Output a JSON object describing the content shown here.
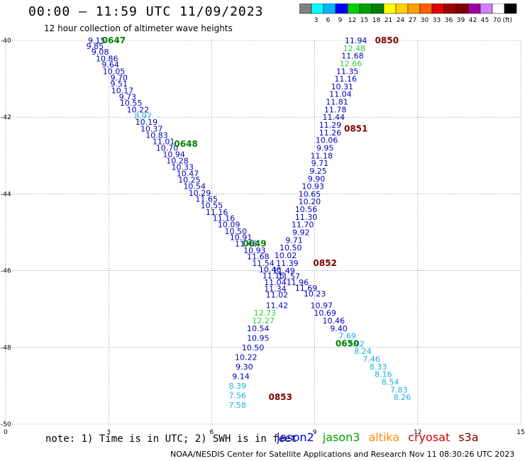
{
  "title": "00:00 – 11:59 UTC 11/09/2023",
  "subtitle": "12 hour collection of altimeter wave heights",
  "note": "note:  1) Time is in UTC; 2) SWH is in feet",
  "credit": "NOAA/NESDIS Center for Satellite Applications and Research   Nov 11 08:30:26 UTC 2023",
  "satellites": [
    {
      "name": "jason2",
      "color": "#0000ff"
    },
    {
      "name": "jason3",
      "color": "#00a000"
    },
    {
      "name": "altika",
      "color": "#ff8c00"
    },
    {
      "name": "cryosat",
      "color": "#d00000"
    },
    {
      "name": "s3a",
      "color": "#800000"
    }
  ],
  "colorbar": {
    "unit": "(ft)",
    "colors": [
      "#808080",
      "#00ffff",
      "#00b4ff",
      "#0000ff",
      "#00d000",
      "#00a000",
      "#008000",
      "#ffff00",
      "#ffd000",
      "#ffa000",
      "#ff6000",
      "#e00000",
      "#a00000",
      "#800000",
      "#a000a0",
      "#d080ff",
      "#ffffff",
      "#000000"
    ],
    "labels": [
      "3",
      "6",
      "9",
      "12",
      "15",
      "18",
      "21",
      "24",
      "27",
      "30",
      "33",
      "36",
      "39",
      "42",
      "45",
      "70"
    ]
  },
  "chart_data": {
    "type": "scatter",
    "title": "00:00 – 11:59 UTC 11/09/2023",
    "xlabel": "",
    "ylabel": "",
    "xlim": [
      0,
      15
    ],
    "ylim": [
      -50,
      -40
    ],
    "x_ticks": [
      "0",
      "3",
      "6",
      "9",
      "12",
      "15"
    ],
    "y_ticks": [
      "-40",
      "-42",
      "-44",
      "-46",
      "-48",
      "-50"
    ],
    "grid": true,
    "time_labels": [
      {
        "text": "0647",
        "x": 3.15,
        "y": -40.0,
        "color": "#008000"
      },
      {
        "text": "0648",
        "x": 5.25,
        "y": -42.7,
        "color": "#008000"
      },
      {
        "text": "0649",
        "x": 7.25,
        "y": -45.3,
        "color": "#008000"
      },
      {
        "text": "0650",
        "x": 9.95,
        "y": -47.9,
        "color": "#008000"
      },
      {
        "text": "0850",
        "x": 11.1,
        "y": -40.0,
        "color": "#800000"
      },
      {
        "text": "0851",
        "x": 10.2,
        "y": -42.3,
        "color": "#800000"
      },
      {
        "text": "0852",
        "x": 9.3,
        "y": -45.8,
        "color": "#800000"
      },
      {
        "text": "0853",
        "x": 8.0,
        "y": -49.3,
        "color": "#800000"
      }
    ],
    "series": [
      {
        "name": "jason3",
        "points": [
          [
            2.65,
            -40.0,
            "9.15"
          ],
          [
            2.6,
            -40.15,
            "9.85"
          ],
          [
            2.75,
            -40.3,
            "9.08"
          ],
          [
            2.95,
            -40.47,
            "10.86"
          ],
          [
            3.05,
            -40.63,
            "9.64"
          ],
          [
            3.15,
            -40.8,
            "10.05"
          ],
          [
            3.3,
            -40.97,
            "9.70"
          ],
          [
            3.3,
            -41.13,
            "9.51"
          ],
          [
            3.4,
            -41.3,
            "10.17"
          ],
          [
            3.55,
            -41.47,
            "9.73"
          ],
          [
            3.65,
            -41.63,
            "10.55"
          ],
          [
            3.85,
            -41.8,
            "10.22"
          ],
          [
            4.0,
            -41.97,
            "8.97"
          ],
          [
            4.1,
            -42.13,
            "10.19"
          ],
          [
            4.25,
            -42.3,
            "10.37"
          ],
          [
            4.4,
            -42.47,
            "10.83"
          ],
          [
            4.6,
            -42.63,
            "11.01"
          ],
          [
            4.7,
            -42.8,
            "10.70"
          ],
          [
            4.9,
            -42.97,
            "10.94"
          ],
          [
            5.0,
            -43.13,
            "10.28"
          ],
          [
            5.15,
            -43.3,
            "10.33"
          ],
          [
            5.3,
            -43.47,
            "10.47"
          ],
          [
            5.35,
            -43.63,
            "10.25"
          ],
          [
            5.5,
            -43.8,
            "10.54"
          ],
          [
            5.65,
            -43.97,
            "10.29"
          ],
          [
            5.85,
            -44.13,
            "11.65"
          ],
          [
            6.0,
            -44.3,
            "10.55"
          ],
          [
            6.15,
            -44.47,
            "11.16"
          ],
          [
            6.35,
            -44.63,
            "11.16"
          ],
          [
            6.5,
            -44.8,
            "10.09"
          ],
          [
            6.7,
            -44.97,
            "10.50"
          ],
          [
            6.85,
            -45.13,
            "10.91"
          ],
          [
            7.0,
            -45.3,
            "11.46"
          ],
          [
            7.25,
            -45.47,
            "10.93"
          ],
          [
            7.35,
            -45.63,
            "11.68"
          ],
          [
            7.5,
            -45.8,
            "11.54"
          ],
          [
            7.7,
            -45.97,
            "10.46"
          ],
          [
            7.8,
            -46.13,
            "11.15"
          ],
          [
            7.85,
            -46.3,
            "11.04"
          ],
          [
            7.85,
            -46.47,
            "11.34"
          ],
          [
            7.9,
            -46.63,
            "11.02"
          ],
          [
            7.9,
            -46.9,
            "11.42"
          ]
        ]
      },
      {
        "name": "s3a",
        "points": [
          [
            10.2,
            -40.0,
            "11.94"
          ],
          [
            10.15,
            -40.2,
            "12.48"
          ],
          [
            10.1,
            -40.4,
            "11.68"
          ],
          [
            10.05,
            -40.6,
            "12.66"
          ],
          [
            9.95,
            -40.8,
            "11.35"
          ],
          [
            9.9,
            -41.0,
            "11.16"
          ],
          [
            9.8,
            -41.2,
            "10.31"
          ],
          [
            9.75,
            -41.4,
            "11.04"
          ],
          [
            9.65,
            -41.6,
            "11.81"
          ],
          [
            9.6,
            -41.8,
            "11.78"
          ],
          [
            9.55,
            -42.0,
            "11.44"
          ],
          [
            9.45,
            -42.2,
            "11.29"
          ],
          [
            9.45,
            -42.4,
            "11.26"
          ],
          [
            9.35,
            -42.6,
            "10.06"
          ],
          [
            9.3,
            -42.8,
            "9.95"
          ],
          [
            9.2,
            -43.0,
            "11.18"
          ],
          [
            9.15,
            -43.2,
            "9.71"
          ],
          [
            9.1,
            -43.4,
            "9.25"
          ],
          [
            9.05,
            -43.6,
            "9.90"
          ],
          [
            8.95,
            -43.8,
            "10.93"
          ],
          [
            8.85,
            -44.0,
            "10.65"
          ],
          [
            8.85,
            -44.2,
            "10.20"
          ],
          [
            8.75,
            -44.4,
            "10.56"
          ],
          [
            8.75,
            -44.6,
            "11.30"
          ],
          [
            8.65,
            -44.8,
            "11.70"
          ],
          [
            8.6,
            -45.0,
            "9.92"
          ],
          [
            8.4,
            -45.2,
            "9.71"
          ],
          [
            8.3,
            -45.4,
            "10.50"
          ],
          [
            8.15,
            -45.6,
            "10.02"
          ],
          [
            8.2,
            -45.8,
            "11.39"
          ],
          [
            8.1,
            -46.0,
            "11.49"
          ],
          [
            8.25,
            -46.15,
            "11.57"
          ],
          [
            8.5,
            -46.3,
            "11.96"
          ],
          [
            8.75,
            -46.45,
            "11.69"
          ],
          [
            9.0,
            -46.6,
            "10.23"
          ],
          [
            9.2,
            -46.9,
            "10.97"
          ],
          [
            9.3,
            -47.1,
            "10.69"
          ],
          [
            9.55,
            -47.3,
            "10.46"
          ],
          [
            9.7,
            -47.5,
            "9.40"
          ],
          [
            9.95,
            -47.7,
            "7.69"
          ],
          [
            10.2,
            -47.9,
            "7.92"
          ],
          [
            10.4,
            -48.1,
            "8.24"
          ],
          [
            10.65,
            -48.3,
            "7.46"
          ],
          [
            10.85,
            -48.5,
            "8.33"
          ],
          [
            11.0,
            -48.7,
            "8.16"
          ],
          [
            11.2,
            -48.9,
            "8.54"
          ],
          [
            11.45,
            -49.1,
            "7.83"
          ],
          [
            11.55,
            -49.3,
            "8.26"
          ],
          [
            7.55,
            -47.1,
            "12.73"
          ],
          [
            7.5,
            -47.3,
            "12.27"
          ],
          [
            7.35,
            -47.5,
            "10.54"
          ],
          [
            7.35,
            -47.75,
            "10.95"
          ],
          [
            7.2,
            -48.0,
            "10.50"
          ],
          [
            7.0,
            -48.25,
            "10.22"
          ],
          [
            6.95,
            -48.5,
            "9.30"
          ],
          [
            6.85,
            -48.75,
            "9.14"
          ],
          [
            6.75,
            -49.0,
            "8.39"
          ],
          [
            6.75,
            -49.25,
            "7.56"
          ],
          [
            6.75,
            -49.5,
            "7.58"
          ]
        ]
      }
    ]
  }
}
